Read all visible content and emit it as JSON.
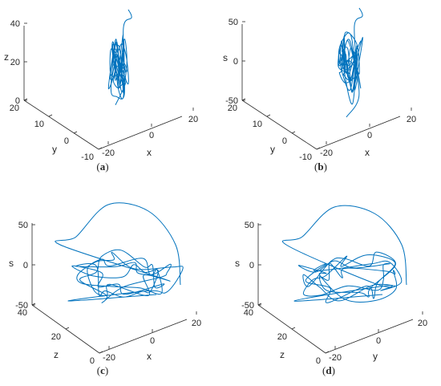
{
  "chart_data": [
    {
      "type": "line3d",
      "panel": "a",
      "caption": {
        "open": "(",
        "letter": "a",
        "close": ")"
      },
      "axes": {
        "x": {
          "label": "x",
          "ticks": [
            -20,
            0,
            20
          ]
        },
        "y": {
          "label": "y",
          "ticks": [
            20,
            10,
            0,
            -10
          ]
        },
        "z": {
          "label": "z",
          "ticks": [
            0,
            20,
            40
          ]
        }
      },
      "grid": false,
      "color": "#0072BD"
    },
    {
      "type": "line3d",
      "panel": "b",
      "caption": {
        "open": "(",
        "letter": "b",
        "close": ")"
      },
      "axes": {
        "x": {
          "label": "x",
          "ticks": [
            -20,
            0,
            20
          ]
        },
        "y": {
          "label": "y",
          "ticks": [
            20,
            10,
            0,
            -10
          ]
        },
        "z": {
          "label": "s",
          "ticks": [
            -50,
            0,
            50
          ]
        }
      },
      "grid": false,
      "color": "#0072BD"
    },
    {
      "type": "line3d",
      "panel": "c",
      "caption": {
        "open": "(",
        "letter": "c",
        "close": ")"
      },
      "axes": {
        "x": {
          "label": "x",
          "ticks": [
            -20,
            0,
            20
          ]
        },
        "y": {
          "label": "z",
          "ticks": [
            40,
            20,
            0
          ]
        },
        "z": {
          "label": "s",
          "ticks": [
            -50,
            0,
            50
          ]
        }
      },
      "grid": false,
      "color": "#0072BD"
    },
    {
      "type": "line3d",
      "panel": "d",
      "caption": {
        "open": "(",
        "letter": "d",
        "close": ")"
      },
      "axes": {
        "x": {
          "label": "y",
          "ticks": [
            -20,
            0,
            20
          ]
        },
        "y": {
          "label": "z",
          "ticks": [
            40,
            20,
            0
          ]
        },
        "z": {
          "label": "s",
          "ticks": [
            -50,
            0,
            50
          ]
        }
      },
      "grid": false,
      "color": "#0072BD"
    }
  ]
}
